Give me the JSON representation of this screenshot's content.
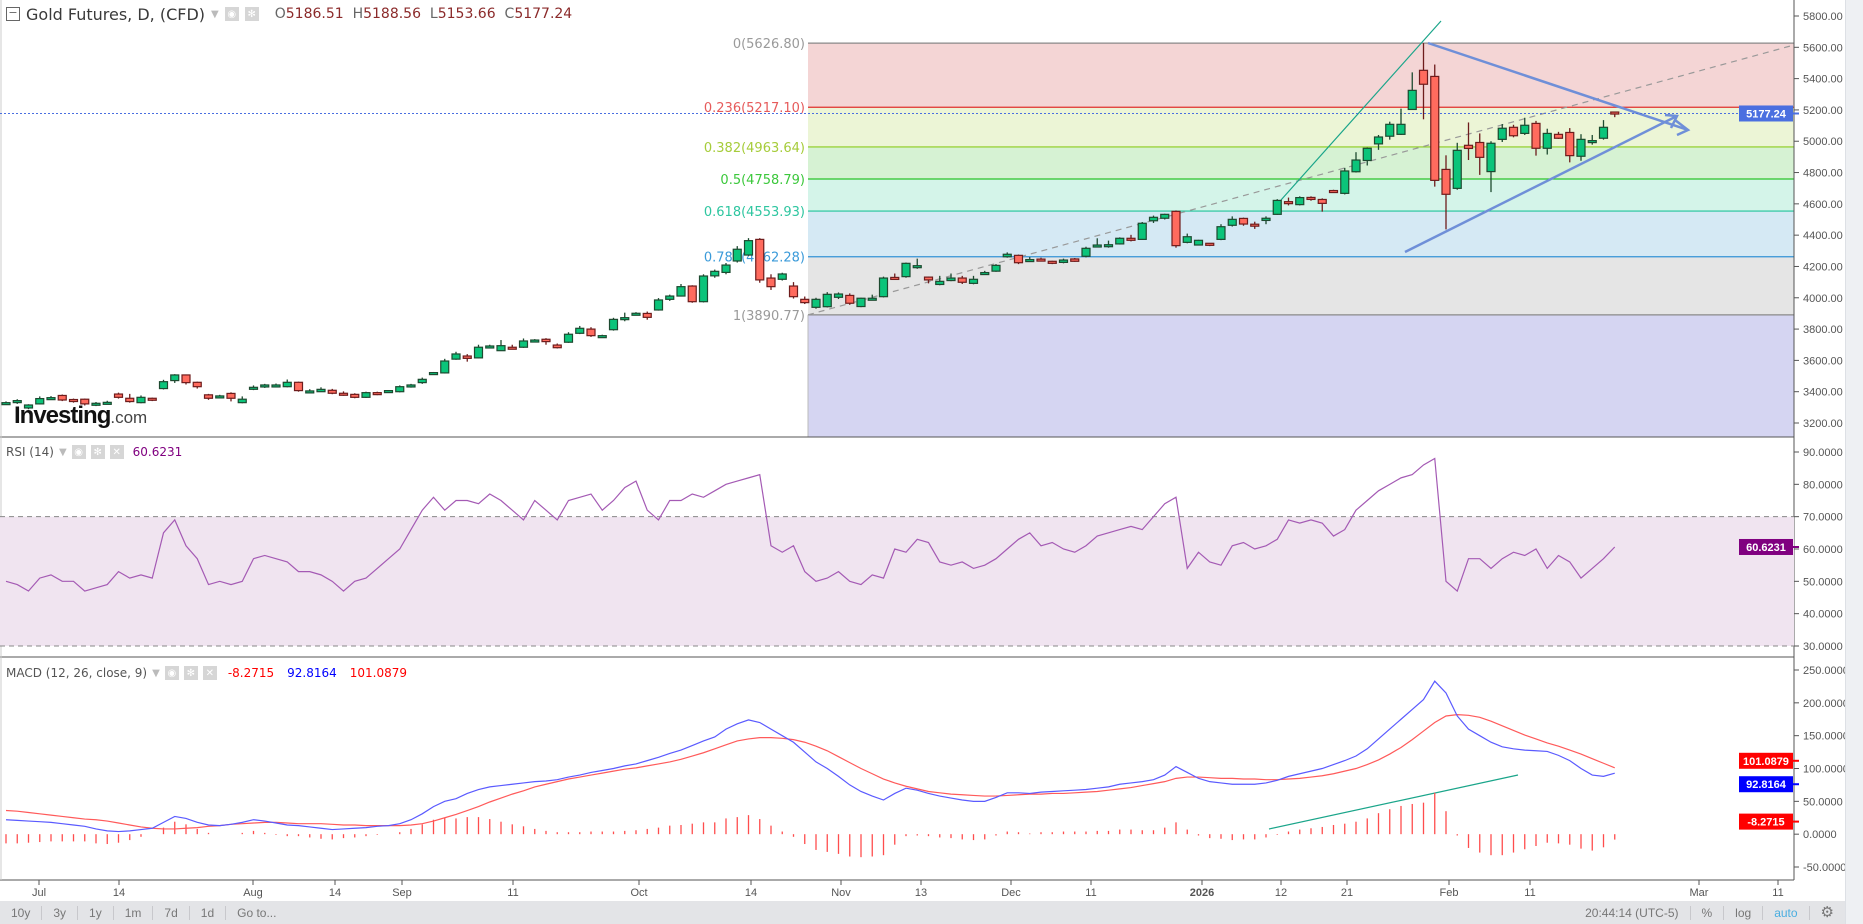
{
  "header": {
    "title": "Gold Futures, D, (CFD)",
    "open_label": "O",
    "open": "5186.51",
    "high_label": "H",
    "high": "5188.56",
    "low_label": "L",
    "low": "5153.66",
    "close_label": "C",
    "close": "5177.24"
  },
  "logo": {
    "brand": "Investing",
    "suffix": ".com"
  },
  "rsi": {
    "title": "RSI (14)",
    "value": "60.6231",
    "color": "#800080",
    "line_color": "#a45ab4",
    "overbought": 70,
    "oversold": 30,
    "ticks": [
      "90.0000",
      "80.0000",
      "70.0000",
      "60.0000",
      "50.0000",
      "40.0000",
      "30.0000"
    ],
    "values": [
      50,
      49,
      47,
      51,
      52,
      50,
      50,
      47,
      48,
      49,
      53,
      51,
      52,
      51,
      65,
      69,
      61,
      57,
      49,
      50,
      49,
      50,
      57,
      58,
      57,
      56,
      53,
      53,
      52,
      50,
      47,
      50,
      51,
      54,
      57,
      60,
      66,
      72,
      76,
      72,
      75,
      75,
      74,
      77,
      75,
      72,
      69,
      75,
      72,
      69,
      75,
      76,
      77,
      72,
      75,
      79,
      81,
      72,
      69,
      75,
      75,
      77,
      76,
      78,
      80,
      81,
      82,
      83,
      61,
      59,
      61,
      53,
      50,
      51,
      53,
      50,
      49,
      52,
      51,
      60,
      59,
      63,
      62,
      56,
      55,
      56,
      54,
      55,
      57,
      60,
      63,
      65,
      61,
      62,
      60,
      59,
      61,
      64,
      65,
      66,
      67,
      66,
      70,
      74,
      76,
      54,
      59,
      56,
      55,
      61,
      62,
      60,
      61,
      63,
      69,
      68,
      69,
      68,
      64,
      66,
      72,
      75,
      78,
      80,
      82,
      83,
      86,
      88,
      50,
      47,
      57,
      57,
      54,
      57,
      59,
      58,
      60,
      54,
      58,
      56,
      51,
      54,
      57,
      60.6231
    ]
  },
  "macd": {
    "title": "MACD (12, 26, close, 9)",
    "histogram_value": "-8.2715",
    "macd_value": "92.8164",
    "signal_value": "101.0879",
    "macd_color": "#0000ff",
    "signal_color": "#ff0000",
    "ticks": [
      "250.0000",
      "200.0000",
      "150.0000",
      "100.0000",
      "50.0000",
      "0.0000",
      "-50.0000"
    ],
    "macd": [
      22,
      21,
      20,
      19,
      18,
      16,
      14,
      12,
      8,
      5,
      4,
      5,
      7,
      9,
      18,
      27,
      24,
      18,
      14,
      13,
      15,
      18,
      22,
      20,
      17,
      14,
      13,
      11,
      9,
      7,
      8,
      9,
      10,
      12,
      13,
      16,
      22,
      31,
      42,
      50,
      54,
      62,
      68,
      72,
      74,
      76,
      78,
      80,
      81,
      83,
      87,
      90,
      94,
      97,
      100,
      104,
      107,
      112,
      117,
      123,
      128,
      135,
      142,
      148,
      160,
      168,
      174,
      170,
      160,
      150,
      140,
      125,
      110,
      100,
      88,
      75,
      65,
      58,
      52,
      62,
      70,
      67,
      62,
      58,
      55,
      52,
      50,
      50,
      56,
      63,
      63,
      62,
      64,
      65,
      66,
      67,
      68,
      70,
      72,
      76,
      78,
      80,
      83,
      90,
      103,
      94,
      85,
      80,
      78,
      76,
      76,
      76,
      78,
      82,
      88,
      92,
      96,
      100,
      106,
      112,
      119,
      130,
      145,
      160,
      175,
      190,
      205,
      233,
      215,
      180,
      160,
      150,
      140,
      133,
      130,
      128,
      127,
      126,
      120,
      112,
      100,
      90,
      88,
      92.8164
    ],
    "signal": [
      36,
      35,
      33,
      31,
      29,
      27,
      25,
      23,
      22,
      20,
      17,
      14,
      11,
      9,
      8,
      8,
      9,
      10,
      12,
      13,
      15,
      16,
      17,
      18,
      18,
      17,
      16,
      16,
      16,
      15,
      14,
      14,
      13,
      13,
      13,
      13,
      14,
      16,
      20,
      25,
      30,
      36,
      42,
      49,
      55,
      61,
      66,
      72,
      76,
      80,
      84,
      87,
      90,
      93,
      96,
      99,
      101,
      104,
      107,
      110,
      114,
      119,
      124,
      130,
      136,
      142,
      145,
      147,
      147,
      146,
      144,
      140,
      134,
      127,
      118,
      109,
      100,
      92,
      84,
      78,
      73,
      69,
      65,
      63,
      61,
      60,
      59,
      58,
      58,
      59,
      60,
      61,
      61,
      62,
      62,
      63,
      64,
      65,
      67,
      69,
      71,
      74,
      77,
      80,
      85,
      87,
      87,
      86,
      85,
      85,
      84,
      84,
      83,
      83,
      84,
      85,
      87,
      89,
      92,
      96,
      100,
      106,
      113,
      122,
      132,
      144,
      157,
      170,
      180,
      182,
      181,
      178,
      172,
      165,
      158,
      151,
      145,
      139,
      134,
      128,
      122,
      115,
      108,
      101.0879
    ]
  },
  "price_axis": {
    "ticks": [
      "5800.00",
      "5600.00",
      "5400.00",
      "5200.00",
      "5000.00",
      "4800.00",
      "4600.00",
      "4400.00",
      "4200.00",
      "4000.00",
      "3800.00",
      "3600.00",
      "3400.00",
      "3200.00"
    ],
    "last_price": "5177.24",
    "last_price_color": "#4a6fe0"
  },
  "fibonacci": {
    "levels": [
      {
        "label": "0(5626.80)",
        "ratio": 0,
        "price": 5626.8,
        "line": "#8a8a8a",
        "text": "#9a9a9a",
        "fill": "#f4d5d5"
      },
      {
        "label": "0.236(5217.10)",
        "ratio": 0.236,
        "price": 5217.1,
        "line": "#e0302c",
        "text": "#e65b5b",
        "fill": "#ecf5d6"
      },
      {
        "label": "0.382(4963.64)",
        "ratio": 0.382,
        "price": 4963.64,
        "line": "#8ccc1e",
        "text": "#a6cc3a",
        "fill": "#d6f2d3"
      },
      {
        "label": "0.5(4758.79)",
        "ratio": 0.5,
        "price": 4758.79,
        "line": "#2ac42a",
        "text": "#3cc83c",
        "fill": "#d4f4e9"
      },
      {
        "label": "0.618(4553.93)",
        "ratio": 0.618,
        "price": 4553.93,
        "line": "#20c49a",
        "text": "#2ec6a0",
        "fill": "#d5e9f4"
      },
      {
        "label": "0.786(4262.28)",
        "ratio": 0.786,
        "price": 4262.28,
        "line": "#3393d6",
        "text": "#3a9ad9",
        "fill": "#e5e5e5"
      },
      {
        "label": "1(3890.77)",
        "ratio": 1,
        "price": 3890.77,
        "line": "#8a8a8a",
        "text": "#9a9a9a",
        "fill": "#d5d5f2"
      }
    ]
  },
  "candles": {
    "up_color": "#0bc47a",
    "down_color": "#ff6b5e",
    "ohlc": [
      [
        3326,
        3338,
        3318,
        3330
      ],
      [
        3332,
        3352,
        3322,
        3343
      ],
      [
        3296,
        3320,
        3288,
        3315
      ],
      [
        3322,
        3370,
        3318,
        3356
      ],
      [
        3356,
        3372,
        3350,
        3362
      ],
      [
        3376,
        3382,
        3340,
        3347
      ],
      [
        3350,
        3356,
        3330,
        3347
      ],
      [
        3352,
        3356,
        3312,
        3322
      ],
      [
        3314,
        3334,
        3308,
        3326
      ],
      [
        3326,
        3342,
        3322,
        3332
      ],
      [
        3385,
        3394,
        3356,
        3364
      ],
      [
        3358,
        3386,
        3330,
        3337
      ],
      [
        3330,
        3376,
        3326,
        3364
      ],
      [
        3358,
        3362,
        3340,
        3352
      ],
      [
        3420,
        3476,
        3414,
        3464
      ],
      [
        3471,
        3512,
        3456,
        3507
      ],
      [
        3507,
        3510,
        3446,
        3458
      ],
      [
        3460,
        3464,
        3420,
        3432
      ],
      [
        3380,
        3386,
        3348,
        3358
      ],
      [
        3371,
        3380,
        3366,
        3373
      ],
      [
        3389,
        3396,
        3338,
        3358
      ],
      [
        3330,
        3370,
        3326,
        3352
      ],
      [
        3418,
        3440,
        3410,
        3428
      ],
      [
        3432,
        3450,
        3424,
        3443
      ],
      [
        3443,
        3452,
        3430,
        3443
      ],
      [
        3432,
        3478,
        3428,
        3460
      ],
      [
        3460,
        3464,
        3400,
        3407
      ],
      [
        3398,
        3416,
        3390,
        3405
      ],
      [
        3400,
        3428,
        3398,
        3415
      ],
      [
        3409,
        3418,
        3384,
        3390
      ],
      [
        3390,
        3402,
        3374,
        3381
      ],
      [
        3383,
        3390,
        3358,
        3364
      ],
      [
        3364,
        3400,
        3360,
        3394
      ],
      [
        3394,
        3400,
        3378,
        3383
      ],
      [
        3405,
        3410,
        3400,
        3407
      ],
      [
        3400,
        3440,
        3396,
        3432
      ],
      [
        3432,
        3450,
        3426,
        3443
      ],
      [
        3458,
        3490,
        3450,
        3479
      ],
      [
        3520,
        3526,
        3518,
        3522
      ],
      [
        3520,
        3610,
        3516,
        3596
      ],
      [
        3608,
        3655,
        3604,
        3641
      ],
      [
        3628,
        3640,
        3592,
        3613
      ],
      [
        3616,
        3700,
        3612,
        3684
      ],
      [
        3684,
        3700,
        3676,
        3692
      ],
      [
        3662,
        3730,
        3660,
        3694
      ],
      [
        3684,
        3700,
        3670,
        3675
      ],
      [
        3684,
        3740,
        3680,
        3724
      ],
      [
        3728,
        3736,
        3720,
        3730
      ],
      [
        3735,
        3742,
        3700,
        3720
      ],
      [
        3698,
        3708,
        3676,
        3681
      ],
      [
        3716,
        3780,
        3712,
        3767
      ],
      [
        3773,
        3820,
        3768,
        3805
      ],
      [
        3800,
        3812,
        3750,
        3758
      ],
      [
        3758,
        3764,
        3750,
        3758
      ],
      [
        3796,
        3872,
        3790,
        3862
      ],
      [
        3870,
        3905,
        3850,
        3873
      ],
      [
        3895,
        3908,
        3888,
        3901
      ],
      [
        3900,
        3912,
        3860,
        3875
      ],
      [
        3922,
        3998,
        3918,
        3986
      ],
      [
        3990,
        4020,
        3980,
        4011
      ],
      [
        4011,
        4088,
        4008,
        4071
      ],
      [
        4075,
        4080,
        3968,
        3975
      ],
      [
        3975,
        4150,
        3970,
        4139
      ],
      [
        4140,
        4180,
        4128,
        4169
      ],
      [
        4162,
        4222,
        4150,
        4209
      ],
      [
        4235,
        4330,
        4225,
        4310
      ],
      [
        4273,
        4381,
        4268,
        4365
      ],
      [
        4373,
        4381,
        4096,
        4114
      ],
      [
        4126,
        4150,
        4050,
        4071
      ],
      [
        4118,
        4160,
        4110,
        4152
      ],
      [
        4075,
        4100,
        3995,
        4007
      ],
      [
        3990,
        4008,
        3960,
        3969
      ],
      [
        3939,
        4000,
        3930,
        3990
      ],
      [
        3943,
        4036,
        3938,
        4022
      ],
      [
        4003,
        4034,
        3992,
        4024
      ],
      [
        4015,
        4028,
        3955,
        3965
      ],
      [
        3944,
        4000,
        3940,
        3997
      ],
      [
        3995,
        4020,
        3990,
        3997
      ],
      [
        4007,
        4135,
        4002,
        4126
      ],
      [
        4130,
        4155,
        4118,
        4122
      ],
      [
        4135,
        4225,
        4128,
        4220
      ],
      [
        4200,
        4250,
        4185,
        4205
      ],
      [
        4132,
        4136,
        4092,
        4114
      ],
      [
        4085,
        4140,
        4080,
        4105
      ],
      [
        4110,
        4155,
        4106,
        4126
      ],
      [
        4126,
        4140,
        4088,
        4099
      ],
      [
        4092,
        4140,
        4086,
        4118
      ],
      [
        4158,
        4172,
        4150,
        4161
      ],
      [
        4170,
        4215,
        4166,
        4207
      ],
      [
        4262,
        4290,
        4256,
        4278
      ],
      [
        4271,
        4276,
        4215,
        4224
      ],
      [
        4242,
        4260,
        4230,
        4244
      ],
      [
        4247,
        4256,
        4240,
        4246
      ],
      [
        4233,
        4236,
        4215,
        4220
      ],
      [
        4226,
        4250,
        4220,
        4241
      ],
      [
        4248,
        4254,
        4230,
        4233
      ],
      [
        4265,
        4326,
        4258,
        4316
      ],
      [
        4334,
        4380,
        4330,
        4337
      ],
      [
        4338,
        4365,
        4320,
        4339
      ],
      [
        4344,
        4386,
        4340,
        4380
      ],
      [
        4380,
        4402,
        4360,
        4367
      ],
      [
        4373,
        4484,
        4370,
        4476
      ],
      [
        4492,
        4525,
        4478,
        4514
      ],
      [
        4508,
        4537,
        4500,
        4533
      ],
      [
        4552,
        4558,
        4320,
        4333
      ],
      [
        4354,
        4410,
        4348,
        4390
      ],
      [
        4337,
        4370,
        4334,
        4367
      ],
      [
        4348,
        4350,
        4330,
        4335
      ],
      [
        4373,
        4470,
        4368,
        4454
      ],
      [
        4463,
        4520,
        4455,
        4501
      ],
      [
        4507,
        4512,
        4460,
        4471
      ],
      [
        4470,
        4486,
        4440,
        4467
      ],
      [
        4494,
        4520,
        4470,
        4508
      ],
      [
        4533,
        4630,
        4530,
        4622
      ],
      [
        4614,
        4640,
        4590,
        4603
      ],
      [
        4595,
        4648,
        4590,
        4640
      ],
      [
        4641,
        4648,
        4620,
        4629
      ],
      [
        4628,
        4635,
        4550,
        4603
      ],
      [
        4685,
        4690,
        4670,
        4674
      ],
      [
        4667,
        4830,
        4660,
        4810
      ],
      [
        4805,
        4930,
        4800,
        4880
      ],
      [
        4877,
        4960,
        4845,
        4955
      ],
      [
        4983,
        5040,
        4945,
        5027
      ],
      [
        5032,
        5125,
        5010,
        5108
      ],
      [
        5044,
        5208,
        5040,
        5108
      ],
      [
        5203,
        5440,
        5200,
        5325
      ],
      [
        5453,
        5626.8,
        5140,
        5364
      ],
      [
        5414,
        5490,
        4710,
        4750
      ],
      [
        4820,
        4910,
        4437,
        4661
      ],
      [
        4699,
        4990,
        4690,
        4942
      ],
      [
        4974,
        5120,
        4880,
        4954
      ],
      [
        4992,
        5050,
        4785,
        4897
      ],
      [
        4806,
        5000,
        4675,
        4987
      ],
      [
        5012,
        5110,
        4995,
        5083
      ],
      [
        5089,
        5105,
        5025,
        5035
      ],
      [
        5050,
        5150,
        5040,
        5102
      ],
      [
        5114,
        5130,
        4908,
        4955
      ],
      [
        4955,
        5080,
        4915,
        5050
      ],
      [
        5044,
        5060,
        5015,
        5019
      ],
      [
        5056,
        5084,
        4865,
        4908
      ],
      [
        4904,
        5045,
        4875,
        5012
      ],
      [
        5004,
        5040,
        4978,
        5004
      ],
      [
        5019,
        5135,
        5010,
        5089
      ],
      [
        5186.51,
        5188.56,
        5153.66,
        5177.24
      ]
    ]
  },
  "date_axis": {
    "labels": [
      "Jul",
      "14",
      "Aug",
      "14",
      "Sep",
      "11",
      "Oct",
      "14",
      "Nov",
      "13",
      "Dec",
      "11",
      "2026",
      "12",
      "21",
      "Feb",
      "11",
      "Mar",
      "11"
    ]
  },
  "toolbar": {
    "ranges": [
      "10y",
      "3y",
      "1y",
      "1m",
      "7d",
      "1d"
    ],
    "goto": "Go to...",
    "time": "20:44:14 (UTC-5)",
    "percent": "%",
    "log": "log",
    "auto": "auto"
  }
}
